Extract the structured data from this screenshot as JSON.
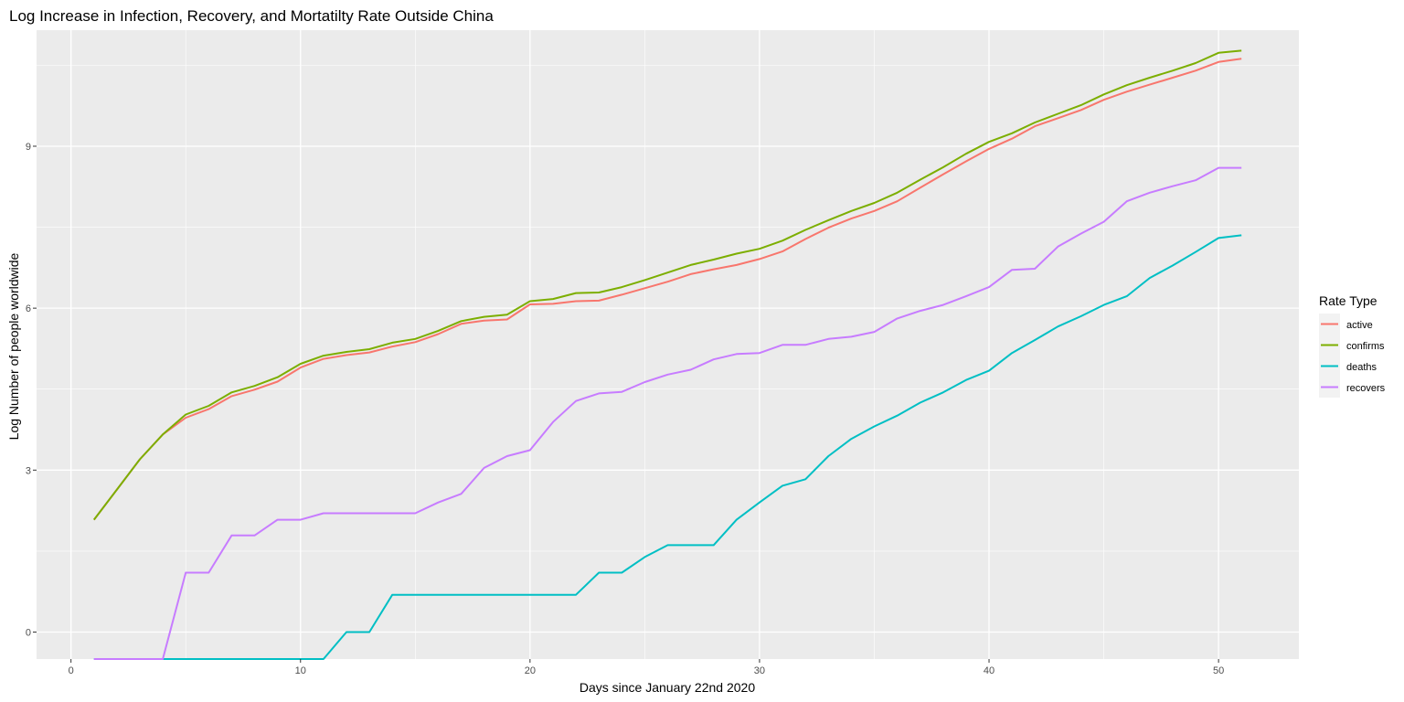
{
  "chart_data": {
    "type": "line",
    "title": "Log Increase in Infection, Recovery, and Mortatilty Rate Outside China",
    "xlabel": "Days since January 22nd 2020",
    "ylabel": "Log Number of people worldwide",
    "xlim": [
      -1.5,
      53.5
    ],
    "ylim": [
      -0.5,
      11.15
    ],
    "x_ticks": [
      0,
      10,
      20,
      30,
      40,
      50
    ],
    "y_ticks": [
      0,
      3,
      6,
      9
    ],
    "grid": true,
    "panel_background": "#ebebeb",
    "legend": {
      "title": "Rate Type",
      "position": "right"
    },
    "x": [
      1,
      2,
      3,
      4,
      5,
      6,
      7,
      8,
      9,
      10,
      11,
      12,
      13,
      14,
      15,
      16,
      17,
      18,
      19,
      20,
      21,
      22,
      23,
      24,
      25,
      26,
      27,
      28,
      29,
      30,
      31,
      32,
      33,
      34,
      35,
      36,
      37,
      38,
      39,
      40,
      41,
      42,
      43,
      44,
      45,
      46,
      47,
      48,
      49,
      50,
      51
    ],
    "series": [
      {
        "name": "active",
        "color": "#f8766d",
        "values": [
          2.08,
          2.64,
          3.2,
          3.66,
          3.97,
          4.13,
          4.37,
          4.49,
          4.64,
          4.9,
          5.06,
          5.13,
          5.18,
          5.29,
          5.37,
          5.52,
          5.71,
          5.77,
          5.79,
          6.07,
          6.08,
          6.13,
          6.14,
          6.25,
          6.37,
          6.49,
          6.63,
          6.72,
          6.8,
          6.91,
          7.05,
          7.28,
          7.49,
          7.66,
          7.8,
          7.98,
          8.23,
          8.48,
          8.72,
          8.95,
          9.14,
          9.37,
          9.52,
          9.67,
          9.86,
          10.01,
          10.14,
          10.27,
          10.4,
          10.56,
          10.62
        ]
      },
      {
        "name": "confirms",
        "color": "#7cae00",
        "values": [
          2.08,
          2.64,
          3.2,
          3.66,
          4.03,
          4.19,
          4.44,
          4.56,
          4.72,
          4.97,
          5.12,
          5.19,
          5.24,
          5.36,
          5.43,
          5.58,
          5.76,
          5.84,
          5.88,
          6.13,
          6.17,
          6.28,
          6.29,
          6.39,
          6.52,
          6.66,
          6.8,
          6.9,
          7.01,
          7.1,
          7.25,
          7.45,
          7.63,
          7.8,
          7.95,
          8.14,
          8.38,
          8.61,
          8.86,
          9.08,
          9.24,
          9.44,
          9.6,
          9.76,
          9.96,
          10.13,
          10.27,
          10.4,
          10.54,
          10.73,
          10.77
        ]
      },
      {
        "name": "deaths",
        "color": "#00bfc4",
        "values": [
          -0.5,
          -0.5,
          -0.5,
          -0.5,
          -0.5,
          -0.5,
          -0.5,
          -0.5,
          -0.5,
          -0.5,
          -0.5,
          0.0,
          0.0,
          0.69,
          0.69,
          0.69,
          0.69,
          0.69,
          0.69,
          0.69,
          0.69,
          0.69,
          1.1,
          1.1,
          1.39,
          1.61,
          1.61,
          1.61,
          2.08,
          2.4,
          2.71,
          2.83,
          3.26,
          3.58,
          3.81,
          4.01,
          4.25,
          4.44,
          4.67,
          4.84,
          5.17,
          5.41,
          5.66,
          5.85,
          6.06,
          6.22,
          6.56,
          6.79,
          7.04,
          7.3,
          7.35
        ]
      },
      {
        "name": "recovers",
        "color": "#c77cff",
        "values": [
          -0.5,
          -0.5,
          -0.5,
          -0.5,
          1.1,
          1.1,
          1.79,
          1.79,
          2.08,
          2.08,
          2.2,
          2.2,
          2.2,
          2.2,
          2.2,
          2.4,
          2.56,
          3.04,
          3.26,
          3.37,
          3.89,
          4.28,
          4.42,
          4.45,
          4.63,
          4.77,
          4.86,
          5.05,
          5.15,
          5.17,
          5.32,
          5.32,
          5.43,
          5.47,
          5.56,
          5.81,
          5.95,
          6.06,
          6.22,
          6.39,
          6.71,
          6.73,
          7.14,
          7.38,
          7.6,
          7.98,
          8.14,
          8.26,
          8.37,
          8.6,
          8.6
        ]
      }
    ]
  }
}
